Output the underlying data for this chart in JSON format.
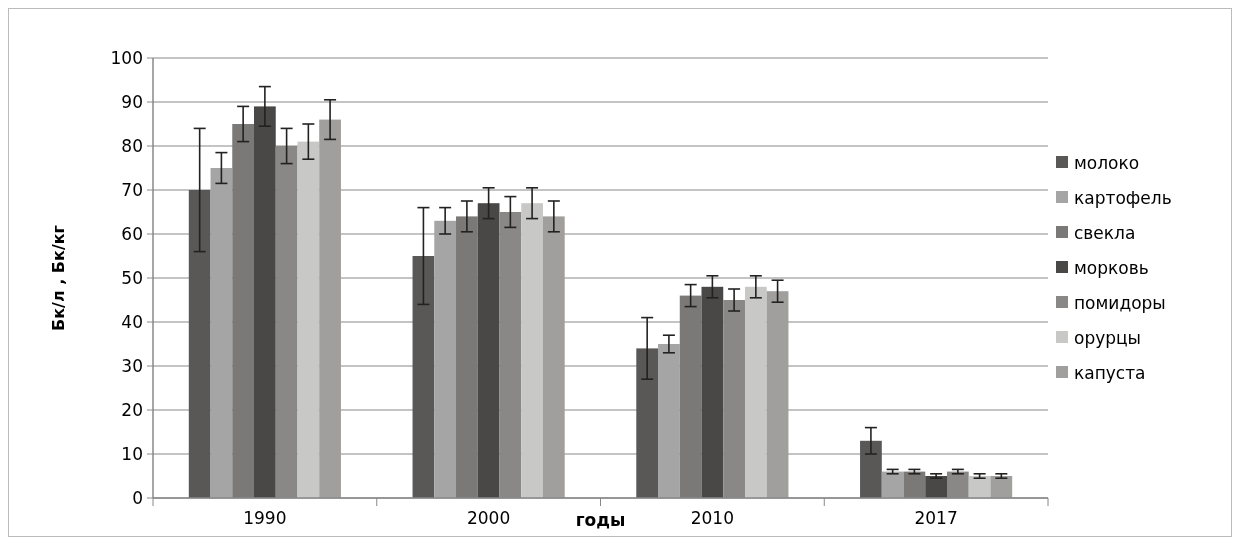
{
  "chart_data": {
    "type": "bar",
    "xlabel": "годы",
    "ylabel": "Бк/л , Бк/кг",
    "categories": [
      "1990",
      "2000",
      "2010",
      "2017"
    ],
    "ylim": [
      0,
      100
    ],
    "yticks": [
      0,
      10,
      20,
      30,
      40,
      50,
      60,
      70,
      80,
      90,
      100
    ],
    "grid": "y",
    "legend": "right",
    "series": [
      {
        "name": "молоко",
        "color": "#5a5856",
        "values": [
          70,
          55,
          34,
          13
        ],
        "errors": [
          14,
          11,
          7,
          3
        ]
      },
      {
        "name": "картофель",
        "color": "#a5a5a5",
        "values": [
          75,
          63,
          35,
          6
        ],
        "errors": [
          3.5,
          3,
          2,
          0.5
        ]
      },
      {
        "name": "свекла",
        "color": "#7a7977",
        "values": [
          85,
          64,
          46,
          6
        ],
        "errors": [
          4,
          3.5,
          2.5,
          0.5
        ]
      },
      {
        "name": "морковь",
        "color": "#4a4846",
        "values": [
          89,
          67,
          48,
          5
        ],
        "errors": [
          4.5,
          3.5,
          2.5,
          0.5
        ]
      },
      {
        "name": "помидоры",
        "color": "#8a8886",
        "values": [
          80,
          65,
          45,
          6
        ],
        "errors": [
          4,
          3.5,
          2.5,
          0.5
        ]
      },
      {
        "name": "орурцы",
        "color": "#c8c8c6",
        "values": [
          81,
          67,
          48,
          5
        ],
        "errors": [
          4,
          3.5,
          2.5,
          0.5
        ]
      },
      {
        "name": "капуста",
        "color": "#a09f9d",
        "values": [
          86,
          64,
          47,
          5
        ],
        "errors": [
          4.5,
          3.5,
          2.5,
          0.5
        ]
      }
    ]
  }
}
